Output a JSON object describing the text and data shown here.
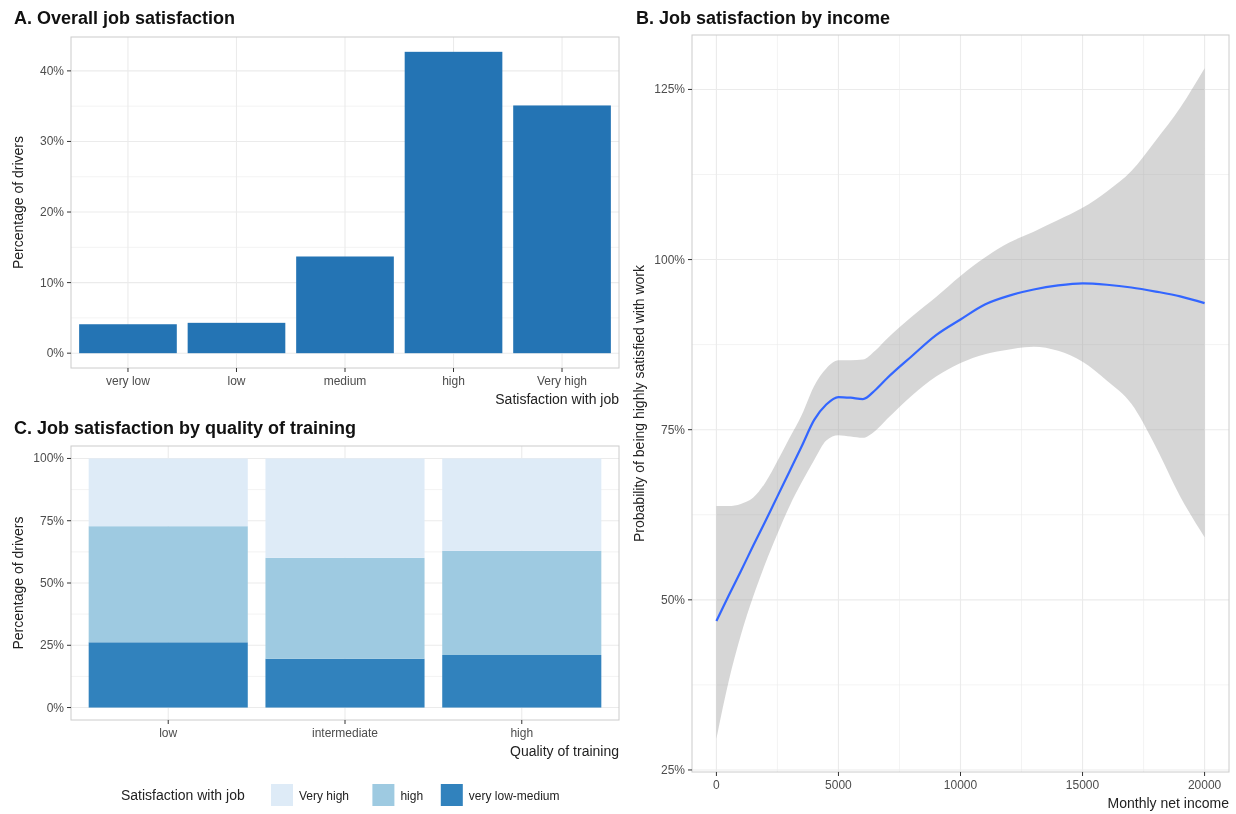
{
  "chart_data": [
    {
      "type": "bar",
      "title": "A. Overall job satisfaction",
      "xlabel": "Satisfaction with job",
      "ylabel": "Percentage of drivers",
      "categories": [
        "very low",
        "low",
        "medium",
        "high",
        "Very high"
      ],
      "values": [
        4.1,
        4.3,
        13.7,
        42.7,
        35.1
      ],
      "color": "#2474b4",
      "ylim": [
        -2.1,
        44.8
      ],
      "yticks": [
        {
          "value": 0,
          "label": "0%"
        },
        {
          "value": 10,
          "label": "10%"
        },
        {
          "value": 20,
          "label": "20%"
        },
        {
          "value": 30,
          "label": "30%"
        },
        {
          "value": 40,
          "label": "40%"
        }
      ],
      "grid": true
    },
    {
      "type": "line",
      "title": "B. Job satisfaction by income",
      "xlabel": "Monthly net income",
      "ylabel": "Probability of being highly satisfied with work",
      "x": [
        0,
        500,
        1000,
        1500,
        2000,
        2500,
        3000,
        3500,
        4000,
        4500,
        5000,
        5500,
        6000,
        6500,
        7000,
        8000,
        9000,
        10000,
        11000,
        12000,
        13000,
        14000,
        15000,
        16000,
        17000,
        18000,
        19000,
        20000
      ],
      "series": [
        {
          "color": "#3366ff",
          "values": [
            46.9,
            50.6,
            54.2,
            57.9,
            61.5,
            65.2,
            68.9,
            72.6,
            76.4,
            78.7,
            79.8,
            79.7,
            79.5,
            80.8,
            82.6,
            85.8,
            88.9,
            91.2,
            93.4,
            94.7,
            95.6,
            96.2,
            96.5,
            96.3,
            95.9,
            95.3,
            94.6,
            93.6
          ],
          "lower": [
            29.6,
            38.0,
            44.8,
            50.4,
            55.3,
            59.7,
            63.8,
            67.3,
            70.5,
            73.4,
            74.2,
            74.0,
            73.8,
            74.8,
            76.6,
            80.0,
            82.8,
            84.8,
            86.1,
            86.8,
            87.2,
            86.6,
            85.0,
            82.2,
            78.8,
            72.5,
            65.2,
            59.2
          ],
          "upper": [
            63.8,
            63.8,
            64.1,
            65.0,
            67.2,
            70.4,
            73.8,
            77.2,
            81.4,
            84.0,
            85.2,
            85.2,
            85.3,
            86.6,
            88.4,
            91.6,
            94.5,
            97.6,
            100.3,
            102.5,
            104.1,
            105.8,
            107.6,
            110.0,
            113.0,
            117.5,
            122.3,
            128.1
          ]
        }
      ],
      "xlim": [
        -1000,
        21000
      ],
      "xticks": [
        0,
        5000,
        10000,
        15000,
        20000
      ],
      "ylim": [
        24.7,
        133.0
      ],
      "yticks": [
        {
          "value": 25,
          "label": "25%"
        },
        {
          "value": 50,
          "label": "50%"
        },
        {
          "value": 75,
          "label": "75%"
        },
        {
          "value": 100,
          "label": "100%"
        },
        {
          "value": 125,
          "label": "125%"
        }
      ],
      "grid": true,
      "marker": "none",
      "line_style": "solid"
    },
    {
      "type": "bar",
      "title": "C. Job satisfaction by quality of training",
      "xlabel": "Quality of training",
      "ylabel": "Percentage of drivers",
      "legend_title": "Satisfaction with job",
      "categories": [
        "low",
        "intermediate",
        "high"
      ],
      "stacked": true,
      "series": [
        {
          "name": "very low-medium",
          "color": "#3182bd",
          "values": [
            26.2,
            19.6,
            21.1
          ]
        },
        {
          "name": "high",
          "color": "#9ecae1",
          "values": [
            46.6,
            40.5,
            41.8
          ]
        },
        {
          "name": "Very high",
          "color": "#deebf7",
          "values": [
            27.2,
            39.9,
            37.1
          ]
        }
      ],
      "ylim": [
        -5,
        105
      ],
      "yticks": [
        {
          "value": 0,
          "label": "0%"
        },
        {
          "value": 25,
          "label": "25%"
        },
        {
          "value": 50,
          "label": "50%"
        },
        {
          "value": 75,
          "label": "75%"
        },
        {
          "value": 100,
          "label": "100%"
        }
      ],
      "grid": true,
      "legend": "bottom"
    }
  ]
}
